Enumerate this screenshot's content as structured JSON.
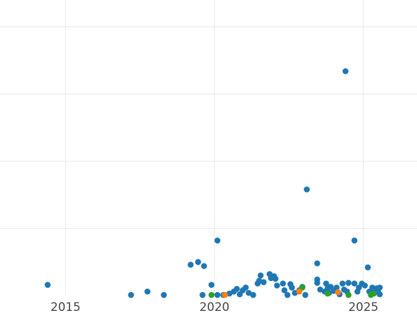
{
  "chart_data": {
    "type": "scatter",
    "title": "",
    "xlabel": "",
    "ylabel": "",
    "xlim": [
      2012.8,
      2026.8
    ],
    "ylim": [
      0,
      22
    ],
    "x_ticks": [
      {
        "value": 2015,
        "label": "2015"
      },
      {
        "value": 2020,
        "label": "2020"
      },
      {
        "value": 2025,
        "label": "2025"
      }
    ],
    "y_gridlines": [
      5,
      10,
      15,
      20
    ],
    "grid": true,
    "series": [
      {
        "color": "#1f77b4",
        "points": [
          [
            2014.4,
            0.8
          ],
          [
            2017.2,
            0.05
          ],
          [
            2017.75,
            0.3
          ],
          [
            2018.3,
            0.05
          ],
          [
            2019.2,
            2.3
          ],
          [
            2019.45,
            2.5
          ],
          [
            2019.65,
            2.2
          ],
          [
            2019.6,
            0.05
          ],
          [
            2019.9,
            0.8
          ],
          [
            2020.1,
            4.1
          ],
          [
            2020.1,
            0.05
          ],
          [
            2020.3,
            0.05
          ],
          [
            2020.5,
            0.15
          ],
          [
            2020.65,
            0.3
          ],
          [
            2020.75,
            0.5
          ],
          [
            2020.85,
            0.1
          ],
          [
            2020.95,
            0.4
          ],
          [
            2021.05,
            0.6
          ],
          [
            2021.15,
            0.2
          ],
          [
            2021.3,
            0.05
          ],
          [
            2021.45,
            0.9
          ],
          [
            2021.5,
            1.1
          ],
          [
            2021.55,
            1.5
          ],
          [
            2021.65,
            1.0
          ],
          [
            2021.85,
            1.6
          ],
          [
            2021.9,
            1.3
          ],
          [
            2022.0,
            1.45
          ],
          [
            2022.05,
            1.25
          ],
          [
            2022.1,
            0.75
          ],
          [
            2022.3,
            0.9
          ],
          [
            2022.35,
            0.4
          ],
          [
            2022.45,
            0.05
          ],
          [
            2022.55,
            0.85
          ],
          [
            2022.6,
            0.6
          ],
          [
            2022.7,
            0.2
          ],
          [
            2022.85,
            0.4
          ],
          [
            2022.95,
            0.65
          ],
          [
            2023.05,
            0.05
          ],
          [
            2023.1,
            7.9
          ],
          [
            2023.45,
            1.2
          ],
          [
            2023.45,
            0.95
          ],
          [
            2023.45,
            2.4
          ],
          [
            2023.55,
            0.45
          ],
          [
            2023.7,
            0.3
          ],
          [
            2023.75,
            0.9
          ],
          [
            2023.8,
            0.55
          ],
          [
            2023.85,
            0.2
          ],
          [
            2023.9,
            0.65
          ],
          [
            2024.0,
            0.35
          ],
          [
            2024.1,
            0.6
          ],
          [
            2024.2,
            0.1
          ],
          [
            2024.3,
            0.9
          ],
          [
            2024.35,
            0.45
          ],
          [
            2024.4,
            16.7
          ],
          [
            2024.45,
            0.3
          ],
          [
            2024.5,
            0.95
          ],
          [
            2024.7,
            0.9
          ],
          [
            2024.7,
            4.1
          ],
          [
            2024.8,
            0.3
          ],
          [
            2024.85,
            0.6
          ],
          [
            2024.95,
            0.9
          ],
          [
            2025.05,
            0.75
          ],
          [
            2025.15,
            2.1
          ],
          [
            2025.2,
            0.3
          ],
          [
            2025.3,
            0.6
          ],
          [
            2025.35,
            0.4
          ],
          [
            2025.45,
            0.55
          ],
          [
            2025.5,
            0.25
          ],
          [
            2025.55,
            0.6
          ],
          [
            2025.55,
            0.1
          ]
        ]
      },
      {
        "color": "#2ca02c",
        "points": [
          [
            2019.9,
            0.05
          ],
          [
            2022.95,
            0.6
          ],
          [
            2023.8,
            0.15
          ],
          [
            2024.5,
            0.05
          ],
          [
            2025.25,
            0.05
          ],
          [
            2025.35,
            0.15
          ]
        ]
      },
      {
        "color": "#ff7f0e",
        "points": [
          [
            2020.35,
            0.05
          ],
          [
            2022.85,
            0.3
          ],
          [
            2024.15,
            0.25
          ]
        ]
      }
    ]
  }
}
